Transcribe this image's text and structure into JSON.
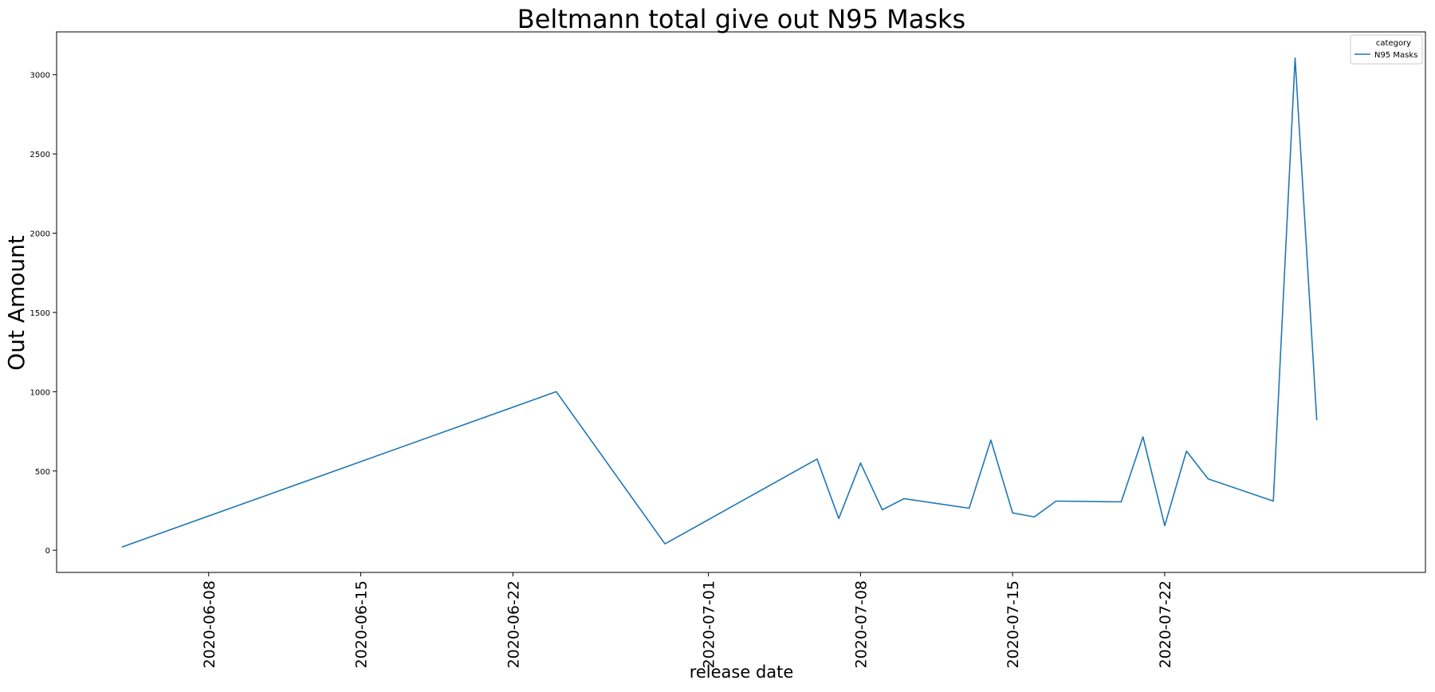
{
  "chart_data": {
    "type": "line",
    "title": "Beltmann total give out N95 Masks",
    "xlabel": "release date",
    "ylabel": "Out Amount",
    "x_type": "date",
    "xlim": [
      "2020-06-01",
      "2020-08-03"
    ],
    "ylim": [
      -140,
      3270
    ],
    "x_ticks": [
      "2020-06-08",
      "2020-06-15",
      "2020-06-22",
      "2020-07-01",
      "2020-07-08",
      "2020-07-15",
      "2020-07-22"
    ],
    "y_ticks": [
      0,
      500,
      1000,
      1500,
      2000,
      2500,
      3000
    ],
    "grid": false,
    "legend": {
      "title": "category",
      "placement": "top-right"
    },
    "series": [
      {
        "name": "N95 Masks",
        "color": "#1f77b4",
        "points": [
          {
            "x": "2020-06-04",
            "y": 20
          },
          {
            "x": "2020-06-24",
            "y": 1000
          },
          {
            "x": "2020-06-29",
            "y": 40
          },
          {
            "x": "2020-07-06",
            "y": 575
          },
          {
            "x": "2020-07-07",
            "y": 200
          },
          {
            "x": "2020-07-08",
            "y": 550
          },
          {
            "x": "2020-07-09",
            "y": 255
          },
          {
            "x": "2020-07-10",
            "y": 325
          },
          {
            "x": "2020-07-13",
            "y": 265
          },
          {
            "x": "2020-07-14",
            "y": 695
          },
          {
            "x": "2020-07-15",
            "y": 235
          },
          {
            "x": "2020-07-16",
            "y": 210
          },
          {
            "x": "2020-07-17",
            "y": 310
          },
          {
            "x": "2020-07-20",
            "y": 305
          },
          {
            "x": "2020-07-21",
            "y": 715
          },
          {
            "x": "2020-07-22",
            "y": 155
          },
          {
            "x": "2020-07-23",
            "y": 625
          },
          {
            "x": "2020-07-24",
            "y": 450
          },
          {
            "x": "2020-07-27",
            "y": 310
          },
          {
            "x": "2020-07-28",
            "y": 3105
          },
          {
            "x": "2020-07-29",
            "y": 820
          }
        ]
      }
    ]
  }
}
